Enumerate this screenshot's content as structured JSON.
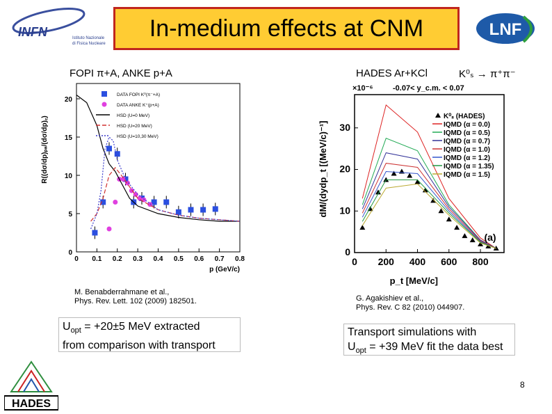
{
  "slide": {
    "title": "In-medium effects at CNM",
    "page_number": "8",
    "title_fill": "#ffcc33",
    "title_border": "#c0261e"
  },
  "logos": {
    "infn": {
      "text": "INFN",
      "sub1": "Istituto Nazionale",
      "sub2": "di Fisica Nucleare"
    },
    "lnf": {
      "text": "LNF",
      "color": "#1e5aa8",
      "accent": "#2e9e3e"
    },
    "hades": {
      "text": "HADES"
    }
  },
  "left_panel": {
    "header": "FOPI π+A, ANKE p+A",
    "citation_line1": "M. Benabderrahmane et al.,",
    "citation_line2": "Phys. Rev. Lett. 102 (2009) 182501.",
    "result_prefix": "U",
    "result_sub": "opt",
    "result_line1": " = +20±5 MeV extracted",
    "result_line2": "from comparison with transport"
  },
  "right_panel": {
    "header": "HADES Ar+KCl",
    "decay": "K⁰ₛ → π⁺π⁻",
    "citation_line1": "G. Agakishiev et al.,",
    "citation_line2": "Phys. Rev. C 82 (2010) 044907.",
    "result_line1": "Transport simulations with",
    "result_prefix": "U",
    "result_sub": "opt",
    "result_line2": " = +39 MeV fit the data best"
  },
  "chart_data": [
    {
      "type": "line",
      "xlabel": "p (GeV/c)",
      "ylabel": "R((dσ/dp)ₚₐ/(dσ/dp)꜀)",
      "xlim": [
        0,
        0.8
      ],
      "ylim": [
        0,
        22
      ],
      "xticks": [
        "0",
        "0.1",
        "0.2",
        "0.3",
        "0.4",
        "0.5",
        "0.6",
        "0.7",
        "0.8"
      ],
      "yticks": [
        "0",
        "5",
        "10",
        "15",
        "20"
      ],
      "legend_position": "top-right",
      "series": [
        {
          "name": "DATA FOPI K⁰(π⁻+A)",
          "kind": "points",
          "color": "#2b4fe0",
          "x": [
            0.09,
            0.13,
            0.16,
            0.2,
            0.24,
            0.28,
            0.32,
            0.38,
            0.44,
            0.5,
            0.56,
            0.62,
            0.68
          ],
          "y": [
            2.5,
            6.5,
            13.5,
            12.8,
            9.5,
            6.5,
            7.0,
            6.5,
            6.5,
            5.2,
            5.5,
            5.5,
            5.6
          ]
        },
        {
          "name": "DATA ANKE K⁺(p+A)",
          "kind": "points",
          "color": "#e040e0",
          "x": [
            0.16,
            0.19,
            0.21,
            0.23,
            0.25,
            0.27,
            0.29,
            0.31,
            0.33,
            0.36
          ],
          "y": [
            3.0,
            6.5,
            9.5,
            9.5,
            9.0,
            8.0,
            7.5,
            7.0,
            6.8,
            6.2
          ]
        },
        {
          "name": "HSD (U=0 MeV)",
          "kind": "line",
          "color": "#000000",
          "dash": "solid",
          "x": [
            0.0,
            0.05,
            0.1,
            0.13,
            0.16,
            0.19,
            0.22,
            0.26,
            0.3,
            0.4,
            0.5,
            0.6,
            0.7,
            0.8
          ],
          "y": [
            20.5,
            19.5,
            16.5,
            13.5,
            11.5,
            10.5,
            9.0,
            7.0,
            6.0,
            5.0,
            4.5,
            4.2,
            4.0,
            4.0
          ]
        },
        {
          "name": "HSD (U=20 MeV)",
          "kind": "line",
          "color": "#d03030",
          "dash": "6,3",
          "x": [
            0.07,
            0.1,
            0.13,
            0.16,
            0.19,
            0.22,
            0.26,
            0.3,
            0.4,
            0.5,
            0.6,
            0.7,
            0.8
          ],
          "y": [
            4.0,
            5.0,
            7.0,
            10.0,
            11.0,
            10.0,
            8.5,
            7.0,
            5.5,
            4.8,
            4.4,
            4.2,
            4.0
          ]
        },
        {
          "name": "HSD (U=10,30 MeV)",
          "kind": "line",
          "color": "#3a3acc",
          "dash": "2,2",
          "x": [
            0.07,
            0.1,
            0.12,
            0.14,
            0.16,
            0.18,
            0.2,
            0.24,
            0.3,
            0.4,
            0.5,
            0.6,
            0.7,
            0.8
          ],
          "y": [
            3.0,
            5.0,
            8.0,
            13.5,
            15.0,
            14.5,
            12.0,
            9.5,
            7.5,
            5.5,
            4.8,
            4.4,
            4.2,
            4.0
          ]
        }
      ]
    },
    {
      "type": "line",
      "title": "-0.07< y_c.m. < 0.07",
      "xlabel": "p_t [MeV/c]",
      "ylabel": "dM/(dydp_t [(MeV/c)⁻¹]",
      "y_multiplier": "×10⁻⁶",
      "panel_label": "(a)",
      "xlim": [
        0,
        950
      ],
      "ylim": [
        0,
        38
      ],
      "xticks": [
        "0",
        "200",
        "400",
        "600",
        "800"
      ],
      "yticks": [
        "0",
        "10",
        "20",
        "30"
      ],
      "legend_position": "top-right",
      "legend_header": "K⁰ₛ (HADES)",
      "series": [
        {
          "name": "K⁰ₛ (HADES)",
          "kind": "points",
          "color": "#000000",
          "x": [
            50,
            100,
            150,
            200,
            250,
            300,
            350,
            400,
            450,
            500,
            550,
            600,
            650,
            700,
            750,
            800,
            850,
            900
          ],
          "y": [
            6.0,
            10.5,
            14.5,
            17.5,
            19.0,
            19.5,
            18.5,
            17.0,
            15.0,
            12.5,
            10.0,
            8.0,
            6.0,
            4.0,
            3.0,
            2.0,
            1.5,
            1.0
          ]
        },
        {
          "name": "IQMD (α = 0.0)",
          "kind": "line",
          "color": "#dd2222",
          "x": [
            50,
            200,
            400,
            600,
            800,
            900
          ],
          "y": [
            13.0,
            35.5,
            29.0,
            13.0,
            3.5,
            1.0
          ]
        },
        {
          "name": "IQMD (α = 0.5)",
          "kind": "line",
          "color": "#22aa55",
          "x": [
            50,
            200,
            400,
            600,
            800,
            900
          ],
          "y": [
            11.5,
            27.5,
            24.5,
            11.5,
            3.0,
            1.0
          ]
        },
        {
          "name": "IQMD (α = 0.7)",
          "kind": "line",
          "color": "#333399",
          "x": [
            50,
            200,
            400,
            600,
            800,
            900
          ],
          "y": [
            10.5,
            24.0,
            22.5,
            11.0,
            3.0,
            1.0
          ]
        },
        {
          "name": "IQMD (α = 1.0)",
          "kind": "line",
          "color": "#cc3333",
          "x": [
            50,
            200,
            400,
            600,
            800,
            900
          ],
          "y": [
            9.5,
            21.5,
            20.5,
            10.5,
            2.8,
            1.0
          ]
        },
        {
          "name": "IQMD (α = 1.2)",
          "kind": "line",
          "color": "#3355cc",
          "x": [
            50,
            200,
            400,
            600,
            800,
            900
          ],
          "y": [
            8.5,
            19.5,
            19.0,
            10.0,
            2.6,
            1.0
          ]
        },
        {
          "name": "IQMD (α = 1.35)",
          "kind": "line",
          "color": "#229944",
          "x": [
            50,
            200,
            400,
            600,
            800,
            900
          ],
          "y": [
            7.5,
            17.5,
            17.5,
            9.5,
            2.5,
            1.0
          ]
        },
        {
          "name": "IQMD (α = 1.5)",
          "kind": "line",
          "color": "#bbaa33",
          "x": [
            50,
            200,
            400,
            600,
            800,
            900
          ],
          "y": [
            6.5,
            15.5,
            16.5,
            9.0,
            2.3,
            1.0
          ]
        }
      ]
    }
  ]
}
